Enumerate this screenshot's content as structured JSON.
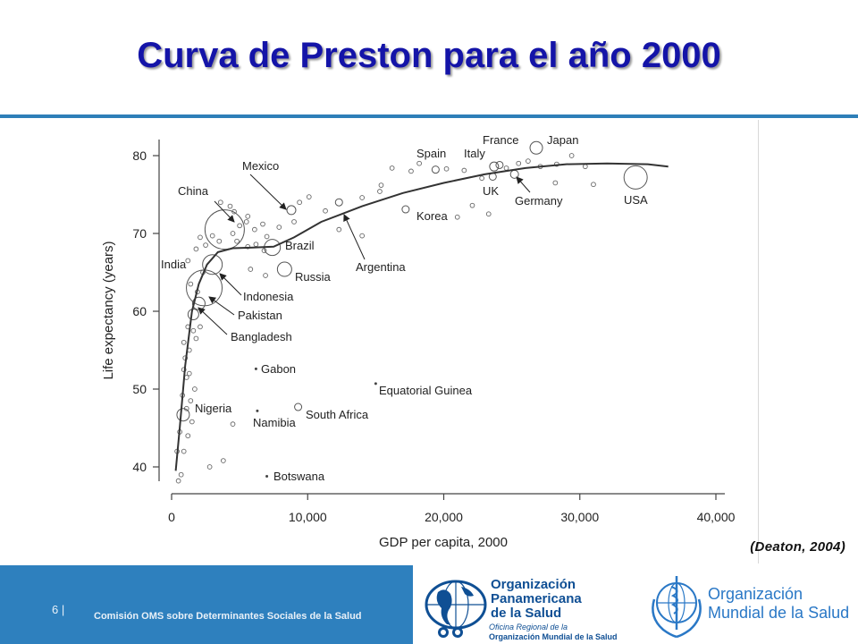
{
  "title": "Curva de Preston para el año 2000",
  "citation": "(Deaton, 2004)",
  "footer": {
    "slide_number": "6",
    "separator": "|",
    "org_text": "Comisión OMS sobre Determinantes Sociales de la Salud"
  },
  "logos": {
    "paho": [
      "Organización",
      "Panamericana",
      "de la Salud"
    ],
    "paho_sub1": "Oficina Regional de la",
    "paho_sub2": "Organización Mundial de la Salud",
    "who": [
      "Organización",
      "Mundial de la Salud"
    ]
  },
  "colors": {
    "title": "#1414a8",
    "rule": "#2e7fb8",
    "footer": "#2e80be",
    "who_blue": "#2a78c6",
    "paho_blue": "#0f4f94"
  },
  "chart_data": {
    "type": "scatter",
    "title": "",
    "xlabel": "GDP per capita, 2000",
    "ylabel": "Life expectancy (years)",
    "xlim": [
      0,
      40000
    ],
    "ylim": [
      37,
      83
    ],
    "x_ticks": [
      0,
      10000,
      20000,
      30000,
      40000
    ],
    "x_tick_labels": [
      "0",
      "10,000",
      "20,000",
      "30,000",
      "40,000"
    ],
    "y_ticks": [
      40,
      50,
      60,
      70,
      80
    ],
    "y_tick_labels": [
      "40",
      "50",
      "60",
      "70",
      "80"
    ],
    "grid": false,
    "marker_size_meaning": "bubble area proportional to population",
    "curve": [
      [
        300,
        39.5
      ],
      [
        600,
        45
      ],
      [
        1000,
        53
      ],
      [
        1500,
        60
      ],
      [
        2000,
        63.5
      ],
      [
        2600,
        66
      ],
      [
        3400,
        67.6
      ],
      [
        4500,
        68.1
      ],
      [
        6000,
        68.2
      ],
      [
        7500,
        68.3
      ],
      [
        9000,
        69.5
      ],
      [
        11000,
        71.5
      ],
      [
        14000,
        73.5
      ],
      [
        17000,
        75.2
      ],
      [
        20000,
        76.5
      ],
      [
        23000,
        77.6
      ],
      [
        26000,
        78.4
      ],
      [
        29000,
        78.9
      ],
      [
        32000,
        79.0
      ],
      [
        35000,
        78.9
      ],
      [
        36500,
        78.6
      ]
    ],
    "labeled_points": [
      {
        "label": "China",
        "x": 3900,
        "y": 70.5,
        "r": 22,
        "arrow": true
      },
      {
        "label": "India",
        "x": 2400,
        "y": 63,
        "r": 20,
        "arrow": false
      },
      {
        "label": "Mexico",
        "x": 8800,
        "y": 73,
        "r": 5,
        "arrow": true
      },
      {
        "label": "Brazil",
        "x": 7400,
        "y": 68.2,
        "r": 9,
        "arrow": false
      },
      {
        "label": "Russia",
        "x": 8300,
        "y": 65.4,
        "r": 8,
        "arrow": false
      },
      {
        "label": "Indonesia",
        "x": 3000,
        "y": 66,
        "r": 11,
        "arrow": true
      },
      {
        "label": "Pakistan",
        "x": 2000,
        "y": 61,
        "r": 7,
        "arrow": true
      },
      {
        "label": "Bangladesh",
        "x": 1600,
        "y": 59.6,
        "r": 6,
        "arrow": true
      },
      {
        "label": "Gabon",
        "x": 6200,
        "y": 52.6,
        "r": 1.5,
        "arrow": false
      },
      {
        "label": "Nigeria",
        "x": 850,
        "y": 46.7,
        "r": 7,
        "arrow": false
      },
      {
        "label": "Namibia",
        "x": 6300,
        "y": 47.2,
        "r": 1.5,
        "arrow": false
      },
      {
        "label": "South Africa",
        "x": 9300,
        "y": 47.7,
        "r": 4,
        "arrow": false
      },
      {
        "label": "Equatorial Guinea",
        "x": 15000,
        "y": 50.7,
        "r": 1.5,
        "arrow": false
      },
      {
        "label": "Botswana",
        "x": 7000,
        "y": 38.8,
        "r": 1.5,
        "arrow": false
      },
      {
        "label": "Argentina",
        "x": 12300,
        "y": 74,
        "r": 4,
        "arrow": true
      },
      {
        "label": "Korea",
        "x": 17200,
        "y": 73.1,
        "r": 4,
        "arrow": false
      },
      {
        "label": "Spain",
        "x": 19400,
        "y": 78.2,
        "r": 4,
        "arrow": false
      },
      {
        "label": "Italy",
        "x": 23700,
        "y": 78.6,
        "r": 5,
        "arrow": false
      },
      {
        "label": "France",
        "x": 24100,
        "y": 78.8,
        "r": 4,
        "arrow": false
      },
      {
        "label": "UK",
        "x": 23600,
        "y": 77.3,
        "r": 4,
        "arrow": false
      },
      {
        "label": "Germany",
        "x": 25200,
        "y": 77.6,
        "r": 4.5,
        "arrow": true
      },
      {
        "label": "Japan",
        "x": 26800,
        "y": 81.0,
        "r": 7,
        "arrow": false
      },
      {
        "label": "USA",
        "x": 34100,
        "y": 77.2,
        "r": 13,
        "arrow": false
      }
    ],
    "other_points": [
      [
        500,
        38.2
      ],
      [
        700,
        39.0
      ],
      [
        400,
        42.0
      ],
      [
        900,
        42.0
      ],
      [
        600,
        44.5
      ],
      [
        1200,
        44.0
      ],
      [
        1500,
        45.8
      ],
      [
        1100,
        47.5
      ],
      [
        1400,
        48.5
      ],
      [
        1700,
        50.0
      ],
      [
        800,
        49.2
      ],
      [
        1100,
        51.5
      ],
      [
        900,
        52.5
      ],
      [
        1300,
        52.0
      ],
      [
        1000,
        54.0
      ],
      [
        1300,
        55.0
      ],
      [
        900,
        56.0
      ],
      [
        1800,
        56.5
      ],
      [
        1600,
        57.5
      ],
      [
        1200,
        58.0
      ],
      [
        2100,
        58.0
      ],
      [
        1900,
        62.5
      ],
      [
        1400,
        63.5
      ],
      [
        2300,
        65.0
      ],
      [
        1200,
        66.5
      ],
      [
        1800,
        68.0
      ],
      [
        2500,
        68.5
      ],
      [
        2100,
        69.5
      ],
      [
        3000,
        69.7
      ],
      [
        3500,
        69.0
      ],
      [
        4500,
        70.0
      ],
      [
        5000,
        71.0
      ],
      [
        5500,
        71.5
      ],
      [
        4800,
        69.0
      ],
      [
        5600,
        68.3
      ],
      [
        6200,
        68.6
      ],
      [
        6800,
        67.8
      ],
      [
        7000,
        69.6
      ],
      [
        5800,
        65.4
      ],
      [
        6900,
        64.6
      ],
      [
        4300,
        73.5
      ],
      [
        3600,
        74.0
      ],
      [
        4600,
        72.8
      ],
      [
        5600,
        72.2
      ],
      [
        6100,
        70.5
      ],
      [
        6700,
        71.2
      ],
      [
        7900,
        70.8
      ],
      [
        9000,
        71.5
      ],
      [
        9400,
        74.0
      ],
      [
        10100,
        74.7
      ],
      [
        11300,
        72.9
      ],
      [
        12300,
        70.5
      ],
      [
        14000,
        74.6
      ],
      [
        15300,
        75.4
      ],
      [
        14000,
        69.7
      ],
      [
        15400,
        76.2
      ],
      [
        16200,
        78.4
      ],
      [
        17600,
        78.0
      ],
      [
        18200,
        79.0
      ],
      [
        20200,
        78.3
      ],
      [
        21500,
        78.1
      ],
      [
        21000,
        72.1
      ],
      [
        22100,
        73.6
      ],
      [
        22800,
        77.1
      ],
      [
        23300,
        72.5
      ],
      [
        24600,
        78.4
      ],
      [
        25500,
        79.0
      ],
      [
        26200,
        79.3
      ],
      [
        27100,
        78.6
      ],
      [
        28300,
        78.9
      ],
      [
        28200,
        76.5
      ],
      [
        29400,
        80.0
      ],
      [
        30400,
        78.6
      ],
      [
        31000,
        76.3
      ],
      [
        2800,
        40.0
      ],
      [
        3800,
        40.8
      ],
      [
        4500,
        45.5
      ]
    ]
  }
}
